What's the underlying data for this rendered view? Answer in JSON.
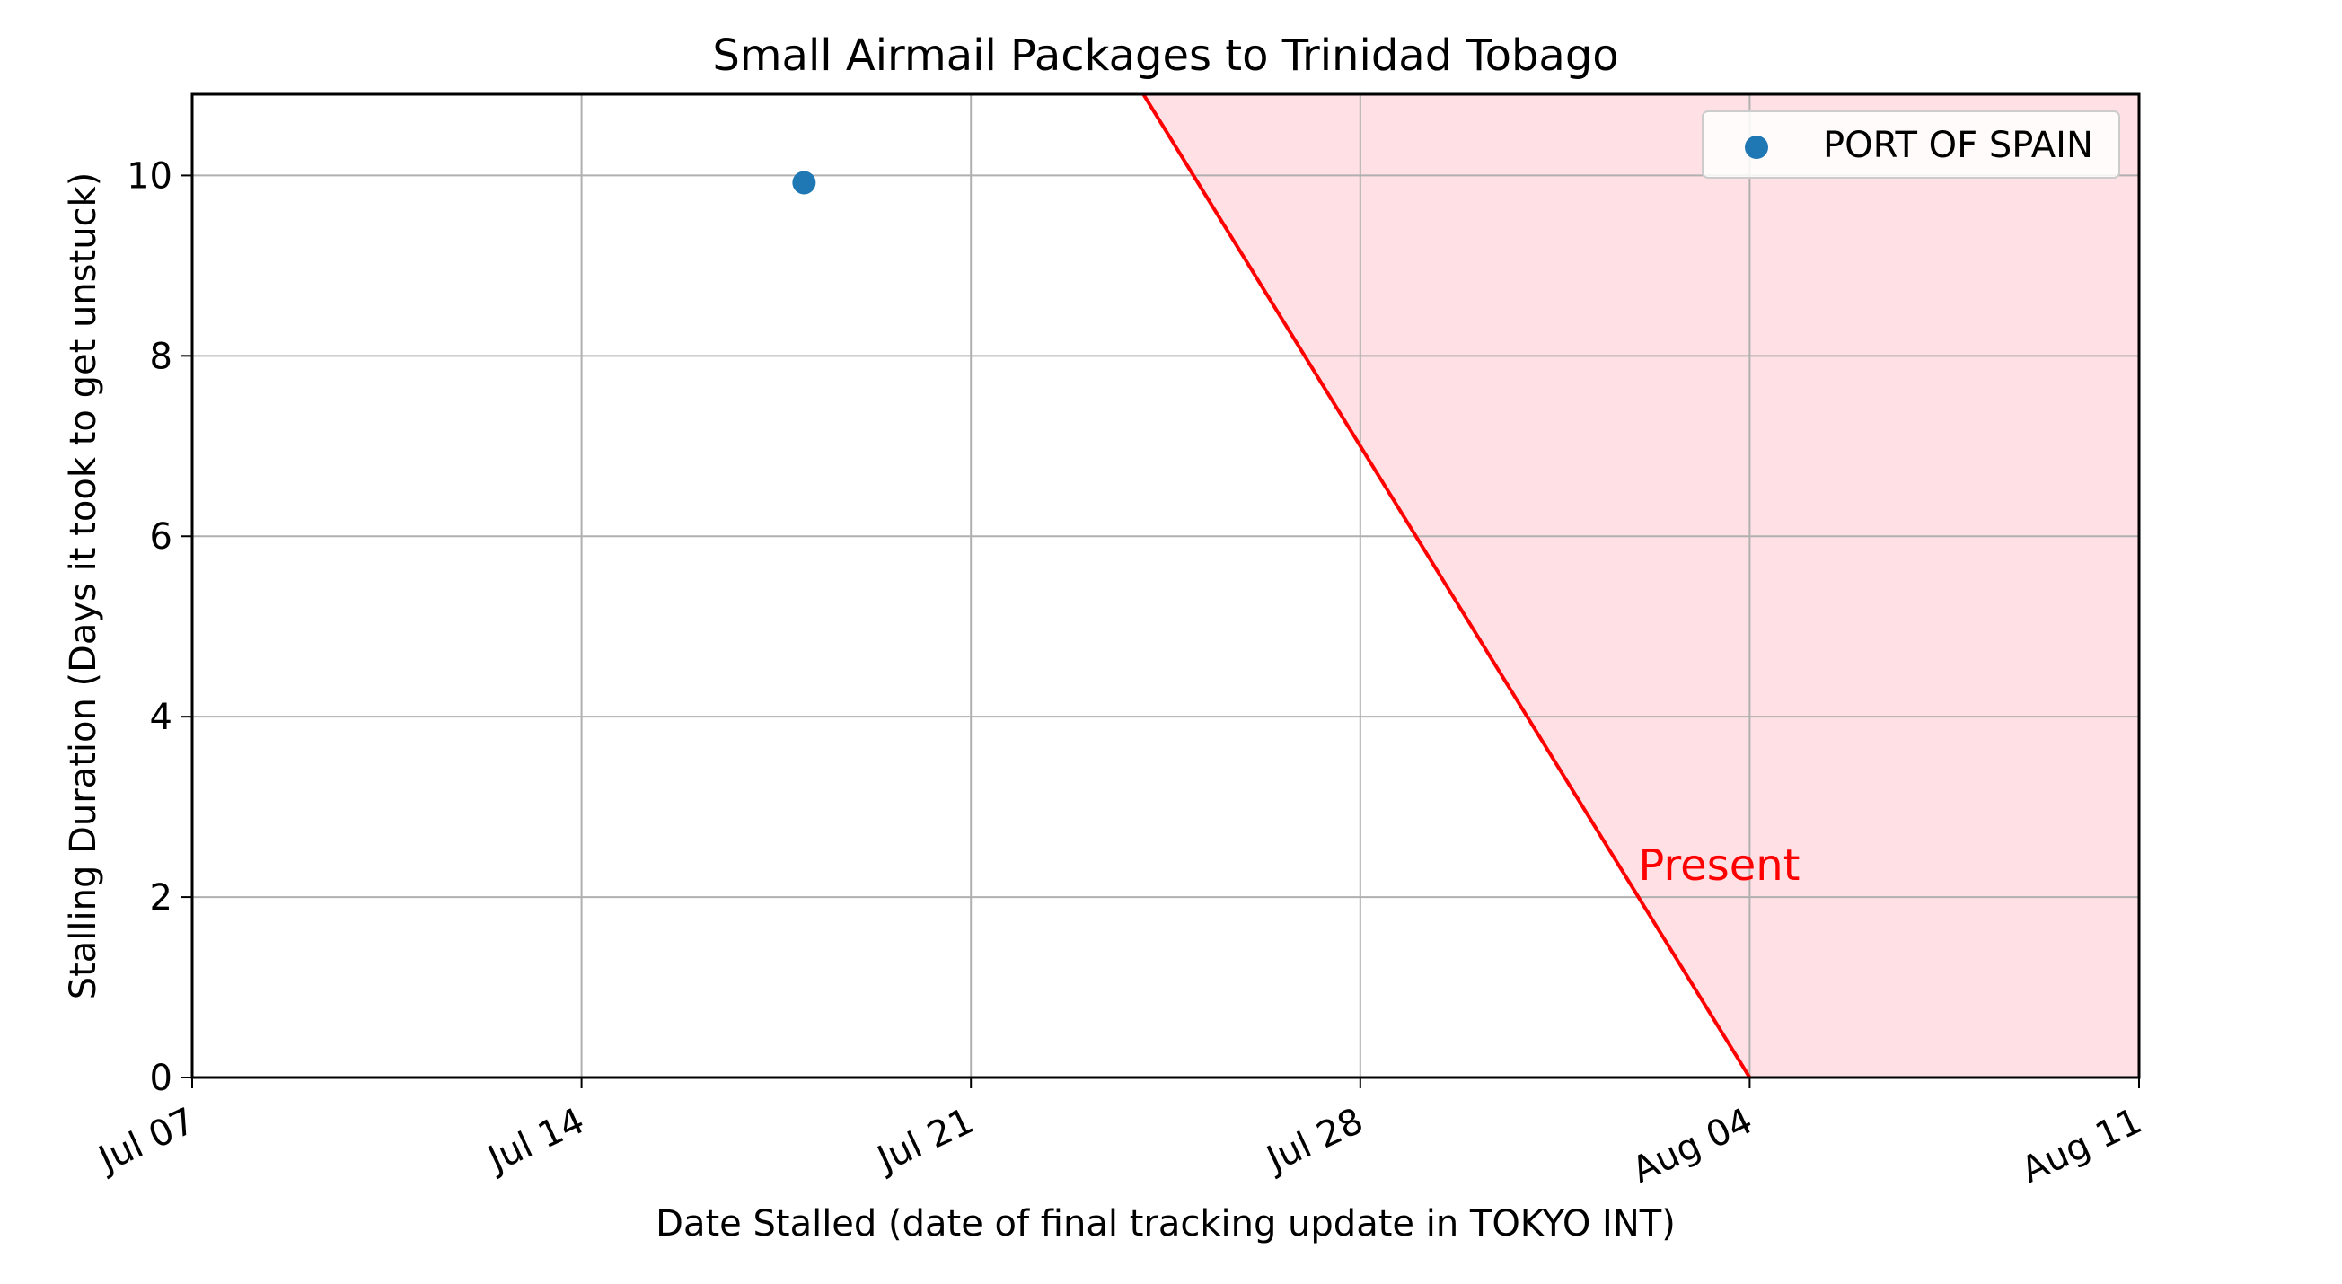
{
  "chart_data": {
    "type": "scatter",
    "title": "Small Airmail Packages to Trinidad Tobago",
    "xlabel": "Date Stalled (date of final tracking update in TOKYO INT)",
    "ylabel": "Stalling Duration (Days it took to get unstuck)",
    "xlim": [
      "2023-07-07",
      "2023-08-11"
    ],
    "ylim": [
      0,
      10.9
    ],
    "x_ticks": [
      "Jul 07",
      "Jul 14",
      "Jul 21",
      "Jul 28",
      "Aug 04",
      "Aug 11"
    ],
    "y_ticks": [
      "0",
      "2",
      "4",
      "6",
      "8",
      "10"
    ],
    "grid": true,
    "legend_position": "top-right",
    "series": [
      {
        "name": "PORT OF SPAIN",
        "color": "#1f77b4",
        "points": [
          {
            "x": "2023-07-18",
            "y": 9.92
          }
        ]
      }
    ],
    "present_line": {
      "label": "Present",
      "color": "#ff0000",
      "shade_color": "#ffe0e4",
      "date": "2023-08-04"
    }
  }
}
